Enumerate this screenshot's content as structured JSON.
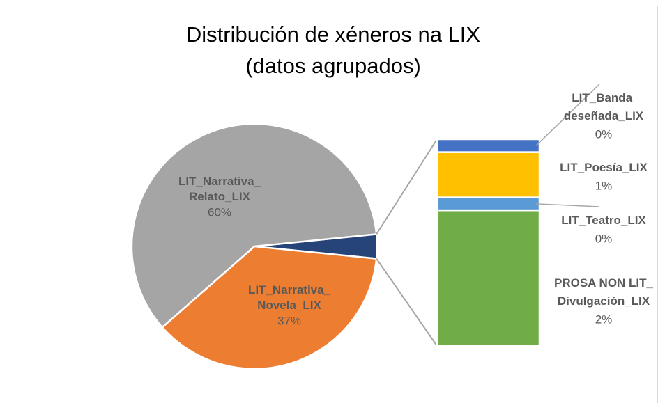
{
  "chart_data": {
    "type": "bar-of-pie",
    "title": [
      "Distribución de xéneros na LIX",
      "(datos agrupados)"
    ],
    "pie": {
      "categories": [
        "LIT_Narrativa_Novela_LIX",
        "LIT_Narrativa_Relato_LIX"
      ],
      "values": [
        37,
        60
      ],
      "value_labels": [
        "37%",
        "60%"
      ],
      "colors": [
        "#ed7d31",
        "#a5a5a5"
      ]
    },
    "other_color": "#264478",
    "bar": {
      "categories": [
        "PROSA NON LIT_Divulgación_LIX",
        "LIT_Teatro_LIX",
        "LIT_Poesía_LIX",
        "LIT_Banda deseñada_LIX"
      ],
      "values": [
        2.1,
        0.2,
        0.7,
        0.2
      ],
      "value_labels": [
        "2%",
        "0%",
        "1%",
        "0%"
      ],
      "colors": [
        "#70ad47",
        "#5b9bd5",
        "#ffc000",
        "#4472c4"
      ]
    }
  }
}
